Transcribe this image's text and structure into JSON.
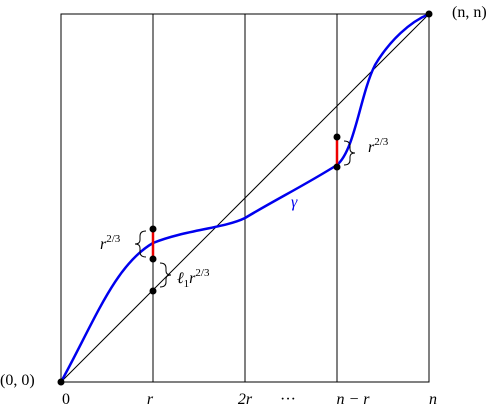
{
  "corner_labels": [
    "(0, 0)",
    "(n, n)"
  ],
  "x_labels": [
    "0",
    "r",
    "2r",
    "···",
    "n − r",
    "n"
  ],
  "curve_label": "γ",
  "annotations": [
    {
      "base": "r",
      "sup": "2/3"
    },
    {
      "base": "r",
      "sup": "2/3"
    },
    {
      "prefix": "ℓ",
      "sub": "1",
      "base": "r",
      "sup": "2/3"
    }
  ]
}
